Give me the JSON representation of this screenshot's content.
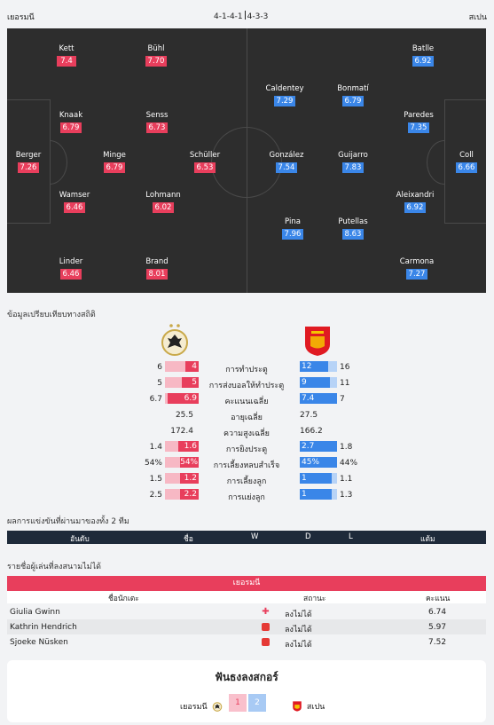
{
  "header": {
    "home_team": "เยอรมนี",
    "away_team": "สเปน",
    "home_formation": "4-1-4-1",
    "away_formation": "4-3-3"
  },
  "lineup": {
    "home": [
      {
        "name": "Kett",
        "rating": "7.4"
      },
      {
        "name": "Bühl",
        "rating": "7.70"
      },
      {
        "name": "Knaak",
        "rating": "6.79"
      },
      {
        "name": "Senss",
        "rating": "6.73"
      },
      {
        "name": "Berger",
        "rating": "7.26"
      },
      {
        "name": "Minge",
        "rating": "6.79"
      },
      {
        "name": "Schüller",
        "rating": "6.53"
      },
      {
        "name": "Wamser",
        "rating": "6.46"
      },
      {
        "name": "Lohmann",
        "rating": "6.02"
      },
      {
        "name": "Linder",
        "rating": "6.46"
      },
      {
        "name": "Brand",
        "rating": "8.01"
      }
    ],
    "away": [
      {
        "name": "Batlle",
        "rating": "6.92"
      },
      {
        "name": "Caldentey",
        "rating": "7.29"
      },
      {
        "name": "Bonmatí",
        "rating": "6.79"
      },
      {
        "name": "Paredes",
        "rating": "7.35"
      },
      {
        "name": "González",
        "rating": "7.54"
      },
      {
        "name": "Guijarro",
        "rating": "7.83"
      },
      {
        "name": "Coll",
        "rating": "6.66"
      },
      {
        "name": "Aleixandri",
        "rating": "6.92"
      },
      {
        "name": "Pina",
        "rating": "7.96"
      },
      {
        "name": "Putellas",
        "rating": "8.63"
      },
      {
        "name": "Carmona",
        "rating": "7.27"
      }
    ]
  },
  "stats": {
    "title": "ข้อมูลเปรียบเทียบทางสถิติ",
    "rows": [
      {
        "label": "การทำประตู",
        "home_avg": "6",
        "home": "4",
        "away": "12",
        "away_avg": "16",
        "bar": true,
        "hf": 0.4,
        "af": 0.75
      },
      {
        "label": "การส่งบอลให้ทำประตู",
        "home_avg": "5",
        "home": "5",
        "away": "9",
        "away_avg": "11",
        "bar": true,
        "hf": 0.5,
        "af": 0.82
      },
      {
        "label": "คะแนนเฉลี่ย",
        "home_avg": "6.7",
        "home": "6.9",
        "away": "7.4",
        "away_avg": "7",
        "bar": true,
        "hf": 0.93,
        "af": 1.0
      },
      {
        "label": "อายุเฉลี่ย",
        "home": "25.5",
        "away": "27.5",
        "bar": false
      },
      {
        "label": "ความสูงเฉลี่ย",
        "home": "172.4",
        "away": "166.2",
        "bar": false
      },
      {
        "label": "การยิงประตู",
        "home_avg": "1.4",
        "home": "1.6",
        "away": "2.7",
        "away_avg": "1.8",
        "bar": true,
        "hf": 0.6,
        "af": 1.0
      },
      {
        "label": "การเลี้ยงหลบสำเร็จ",
        "home_avg": "54%",
        "home": "54%",
        "away": "45%",
        "away_avg": "44%",
        "bar": true,
        "hf": 0.55,
        "af": 1.0
      },
      {
        "label": "การเลี้ยงลูก",
        "home_avg": "1.5",
        "home": "1.2",
        "away": "1",
        "away_avg": "1.1",
        "bar": true,
        "hf": 0.55,
        "af": 0.85
      },
      {
        "label": "การแย่งลูก",
        "home_avg": "2.5",
        "home": "2.2",
        "away": "1",
        "away_avg": "1.3",
        "bar": true,
        "hf": 0.55,
        "af": 0.85
      }
    ]
  },
  "results": {
    "title": "ผลการแข่งขันที่ผ่านมาของทั้ง 2 ทีม",
    "columns": [
      "อันดับ",
      "ชื่อ",
      "W",
      "D",
      "L",
      "แต้ม"
    ]
  },
  "missing": {
    "title": "รายชื่อผู้เล่นที่ลงสนามไม่ได้",
    "team": "เยอรมนี",
    "columns": [
      "ชื่อนักเตะ",
      "สถานะ",
      "คะแนน"
    ],
    "players": [
      {
        "name": "Giulia Gwinn",
        "icon": "injury-cross-icon",
        "status": "ลงไม่ได้",
        "rating": "6.74"
      },
      {
        "name": "Kathrin Hendrich",
        "icon": "red-card-icon",
        "status": "ลงไม่ได้",
        "rating": "5.97"
      },
      {
        "name": "Sjoeke Nüsken",
        "icon": "red-card-icon",
        "status": "ลงไม่ได้",
        "rating": "7.52"
      }
    ]
  },
  "vote": {
    "title": "ฟันธงลงสกอร์",
    "home_team": "เยอรมนี",
    "away_team": "สเปน",
    "option1": "1",
    "option2": "2"
  },
  "colors": {
    "home": "#e83e5c",
    "away": "#3a86e8",
    "pitch": "#2d2d2d"
  }
}
